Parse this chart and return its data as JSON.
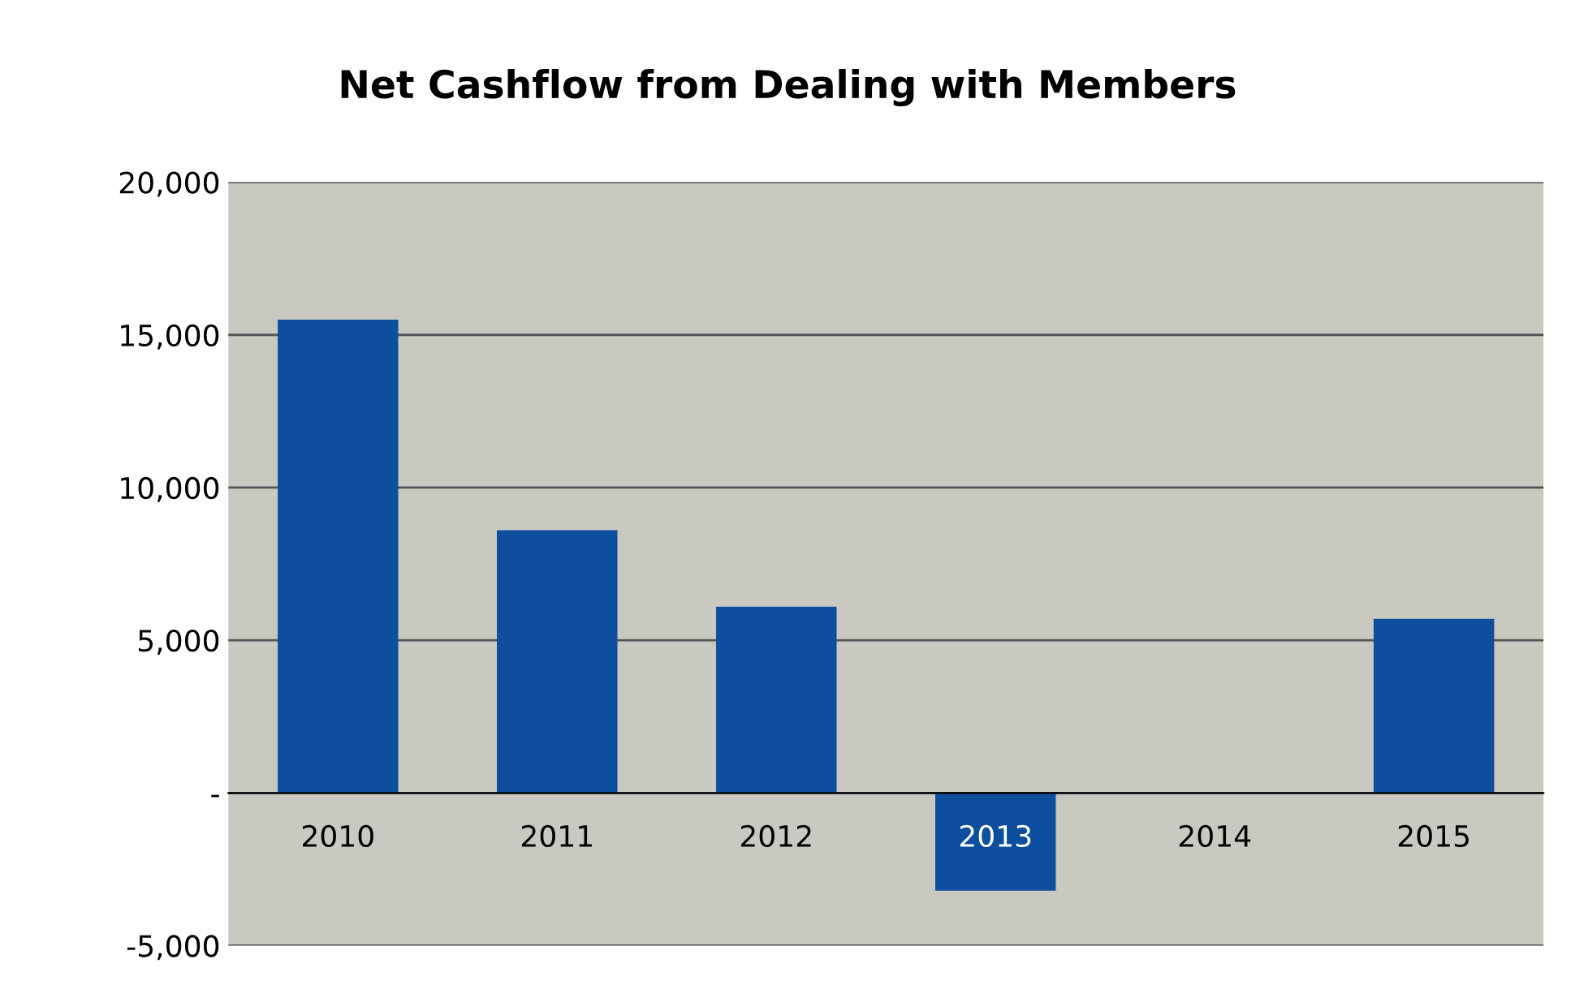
{
  "chart_data": {
    "type": "bar",
    "title": "Net Cashflow from Dealing with Members",
    "categories": [
      "2010",
      "2011",
      "2012",
      "2013",
      "2014",
      "2015"
    ],
    "values": [
      15500,
      8600,
      6100,
      -3200,
      0,
      5700
    ],
    "color": "#0d4f9e",
    "ylim": [
      -5000,
      20000
    ],
    "yticks": [
      {
        "value": -5000,
        "label": "-5,000"
      },
      {
        "value": 0,
        "label": "-"
      },
      {
        "value": 5000,
        "label": "5,000"
      },
      {
        "value": 10000,
        "label": "10,000"
      },
      {
        "value": 15000,
        "label": "15,000"
      },
      {
        "value": 20000,
        "label": "20,000"
      }
    ],
    "grid": "y"
  }
}
